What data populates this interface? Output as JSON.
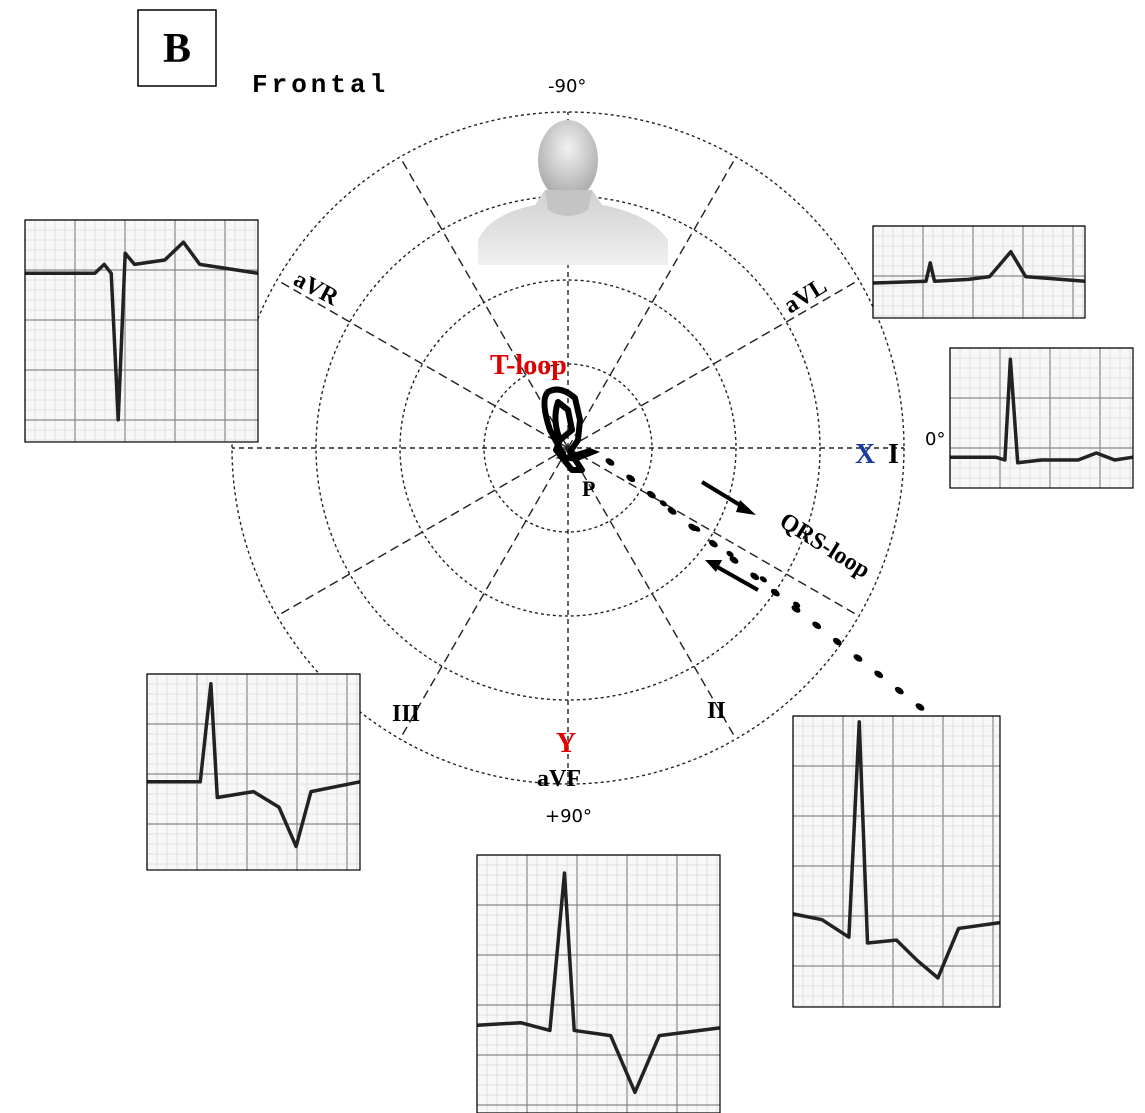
{
  "panel_label": "B",
  "title": "Frontal",
  "angles": {
    "top": "-90°",
    "right": "0°",
    "bottom": "+90°"
  },
  "leads": {
    "avr": "aVR",
    "avl": "aVL",
    "x": "X",
    "i": "I",
    "ii": "II",
    "iii": "III",
    "y": "Y",
    "avf": "aVF"
  },
  "loops": {
    "t_loop": "T-loop",
    "p": "P",
    "qrs_loop": "QRS-loop"
  }
}
